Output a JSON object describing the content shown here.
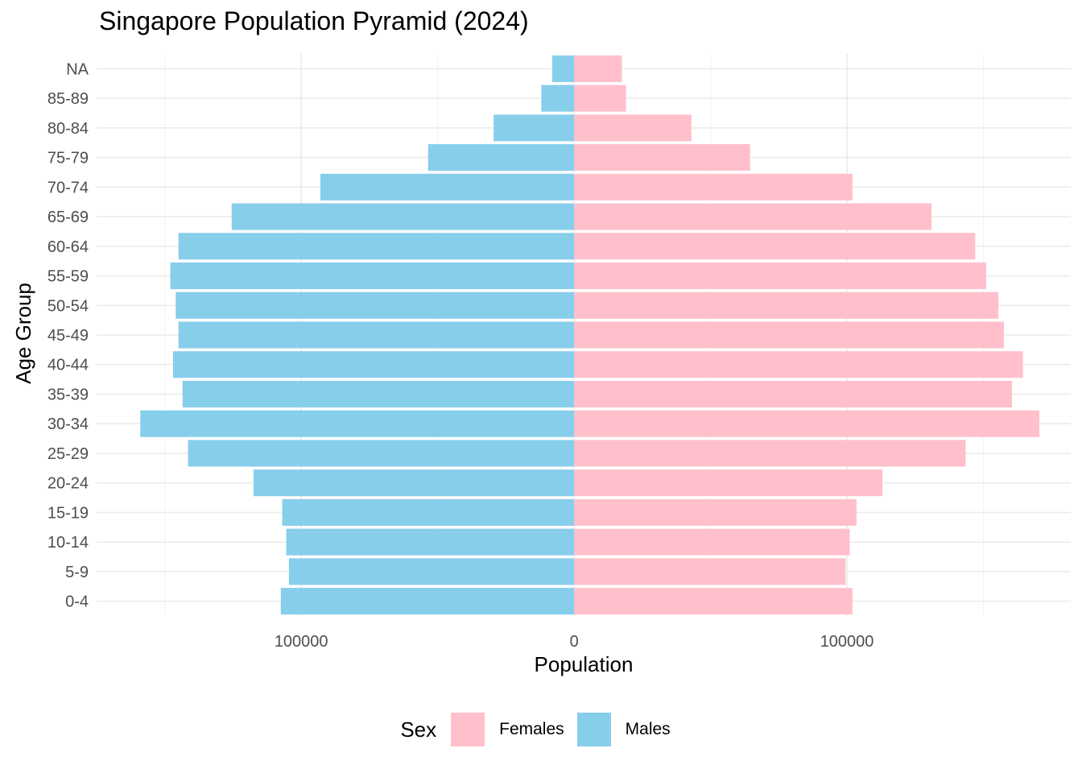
{
  "chart_data": {
    "type": "bar",
    "title": "Singapore Population Pyramid (2024)",
    "xlabel": "Population",
    "ylabel": "Age Group",
    "categories": [
      "0-4",
      "5-9",
      "10-14",
      "15-19",
      "20-24",
      "25-29",
      "30-34",
      "35-39",
      "40-44",
      "45-49",
      "50-54",
      "55-59",
      "60-64",
      "65-69",
      "70-74",
      "75-79",
      "80-84",
      "85-89",
      "NA"
    ],
    "series": [
      {
        "name": "Females",
        "color": "#FFC0CB",
        "values": [
          102000,
          99500,
          101000,
          103500,
          113000,
          143500,
          170500,
          160500,
          164500,
          157500,
          155500,
          151000,
          147000,
          131000,
          102000,
          64500,
          43000,
          19000,
          17500
        ]
      },
      {
        "name": "Males",
        "color": "#87CEEB",
        "values": [
          -107500,
          -104500,
          -105500,
          -107000,
          -117500,
          -141500,
          -159000,
          -143500,
          -147000,
          -145000,
          -146000,
          -148000,
          -145000,
          -125500,
          -93000,
          -53500,
          -29500,
          -12000,
          -8000
        ]
      }
    ],
    "xticks": [
      {
        "value": -100000,
        "label": "100000"
      },
      {
        "value": 0,
        "label": "0"
      },
      {
        "value": 100000,
        "label": "100000"
      }
    ],
    "xlim": [
      -175000,
      182000
    ],
    "grid": true,
    "legend": {
      "title": "Sex",
      "position": "bottom"
    }
  }
}
